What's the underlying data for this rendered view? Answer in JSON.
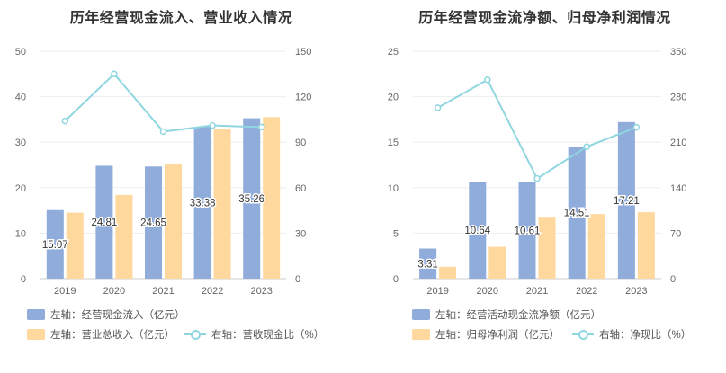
{
  "chart_data": [
    {
      "type": "bar",
      "title": "历年经营现金流入、营业收入情况",
      "categories": [
        "2019",
        "2020",
        "2021",
        "2022",
        "2023"
      ],
      "left_axis": {
        "ylim": [
          0,
          50
        ],
        "ticks": [
          "0",
          "10",
          "20",
          "30",
          "40",
          "50"
        ]
      },
      "right_axis": {
        "ylim": [
          0,
          150
        ],
        "ticks": [
          "0",
          "30",
          "60",
          "90",
          "120",
          "150"
        ]
      },
      "series": [
        {
          "name": "左轴：经营现金流入（亿元）",
          "axis": "left",
          "kind": "bar",
          "color": "#8facdb",
          "values": [
            15.07,
            24.81,
            24.65,
            33.38,
            35.26
          ],
          "labels": [
            "15.07",
            "24.81",
            "24.65",
            "33.38",
            "35.26"
          ]
        },
        {
          "name": "左轴：营业总收入（亿元）",
          "axis": "left",
          "kind": "bar",
          "color": "#ffd89e",
          "values": [
            14.5,
            18.4,
            25.3,
            33.0,
            35.5
          ]
        },
        {
          "name": "右轴：营收现金比（%）",
          "axis": "right",
          "kind": "line",
          "color": "#8fd6e1",
          "values": [
            104,
            135,
            97,
            101,
            100
          ]
        }
      ],
      "grid": true,
      "legend_position": "bottom"
    },
    {
      "type": "bar",
      "title": "历年经营现金流净额、归母净利润情况",
      "categories": [
        "2019",
        "2020",
        "2021",
        "2022",
        "2023"
      ],
      "left_axis": {
        "ylim": [
          0,
          25
        ],
        "ticks": [
          "0",
          "5",
          "10",
          "15",
          "20",
          "25"
        ]
      },
      "right_axis": {
        "ylim": [
          0,
          350
        ],
        "ticks": [
          "0",
          "70",
          "140",
          "210",
          "280",
          "350"
        ]
      },
      "series": [
        {
          "name": "左轴：经营活动现金流净额（亿元）",
          "axis": "left",
          "kind": "bar",
          "color": "#8facdb",
          "values": [
            3.31,
            10.64,
            10.61,
            14.51,
            17.21
          ],
          "labels": [
            "3.31",
            "10.64",
            "10.61",
            "14.51",
            "17.21"
          ]
        },
        {
          "name": "左轴：归母净利润（亿元）",
          "axis": "left",
          "kind": "bar",
          "color": "#ffd89e",
          "values": [
            1.3,
            3.5,
            6.8,
            7.1,
            7.3
          ]
        },
        {
          "name": "右轴：净现比（%）",
          "axis": "right",
          "kind": "line",
          "color": "#8fd6e1",
          "values": [
            263,
            306,
            154,
            203,
            233
          ]
        }
      ],
      "grid": true,
      "legend_position": "bottom"
    }
  ]
}
